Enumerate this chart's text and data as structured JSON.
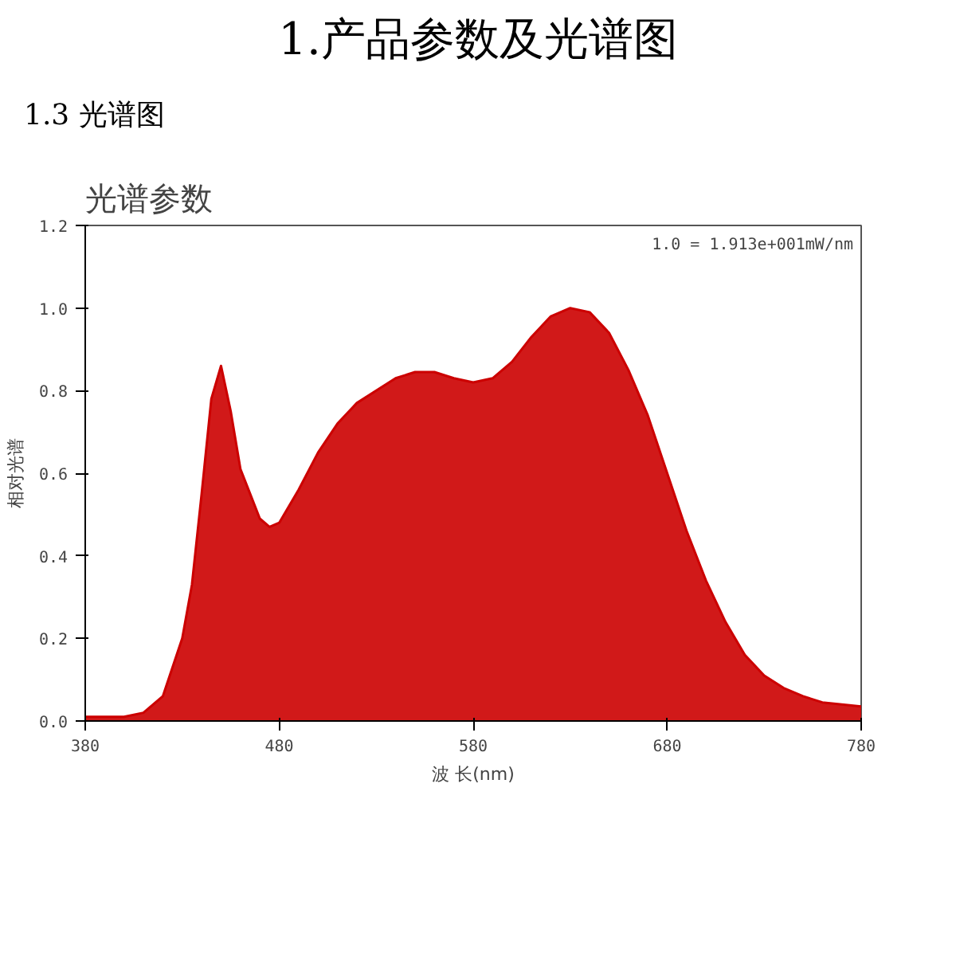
{
  "chart_data": {
    "type": "area",
    "title": "光谱参数",
    "ylabel": "相对光谱",
    "xlabel": "波 长(nm)",
    "annotations": [
      "1.产品参数及光谱图",
      "1.3 光谱图",
      "1.0 = 1.913e+001mW/nm"
    ],
    "x": [
      380,
      400,
      410,
      420,
      430,
      435,
      440,
      445,
      450,
      455,
      460,
      465,
      470,
      475,
      480,
      490,
      500,
      510,
      520,
      530,
      540,
      550,
      560,
      570,
      580,
      590,
      600,
      610,
      620,
      630,
      640,
      650,
      660,
      670,
      680,
      690,
      700,
      710,
      720,
      730,
      740,
      750,
      760,
      770,
      780
    ],
    "series": [
      {
        "color": "#cc0000",
        "values": [
          0.01,
          0.01,
          0.02,
          0.06,
          0.2,
          0.33,
          0.55,
          0.78,
          0.86,
          0.75,
          0.61,
          0.55,
          0.49,
          0.47,
          0.48,
          0.56,
          0.65,
          0.72,
          0.77,
          0.8,
          0.83,
          0.845,
          0.845,
          0.83,
          0.82,
          0.83,
          0.87,
          0.93,
          0.98,
          1.0,
          0.99,
          0.94,
          0.85,
          0.74,
          0.6,
          0.46,
          0.34,
          0.24,
          0.16,
          0.11,
          0.08,
          0.06,
          0.045,
          0.04,
          0.035
        ]
      }
    ],
    "xlim": [
      380,
      780
    ],
    "ylim": [
      0,
      1.2
    ],
    "xticks": [
      380,
      480,
      580,
      680,
      780
    ],
    "yticks": [
      {
        "value": 0,
        "label": "0.0"
      },
      {
        "value": 0.2,
        "label": "0.2"
      },
      {
        "value": 0.4,
        "label": "0.4"
      },
      {
        "value": 0.6,
        "label": "0.6"
      },
      {
        "value": 0.8,
        "label": "0.8"
      },
      {
        "value": 1.0,
        "label": "1.0"
      },
      {
        "value": 1.2,
        "label": "1.2"
      }
    ],
    "grid": false
  }
}
